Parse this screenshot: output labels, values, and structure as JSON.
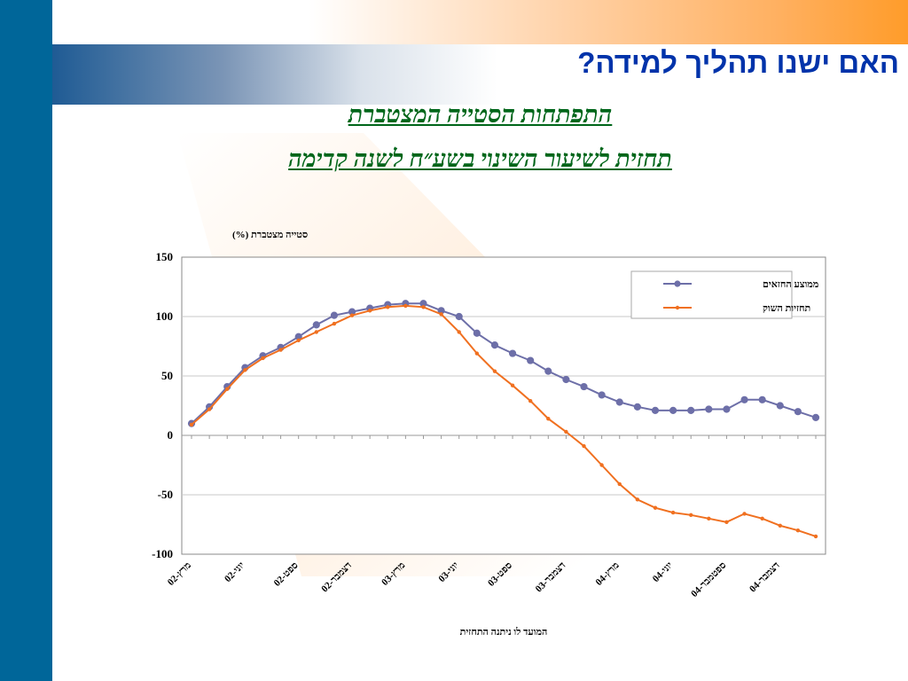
{
  "slide": {
    "title": "האם ישנו תהליך למידה?",
    "subtitle1": "התפתחות הסטייה המצטברת",
    "subtitle2": "תחזית לשיעור השינוי בשע״ח לשנה קדימה",
    "colors": {
      "sidebar": "#006699",
      "title": "#0033aa",
      "subtitle": "#00661a"
    }
  },
  "chart_data": {
    "type": "line",
    "ylabel": "סטייה מצטברת (%)",
    "xlabel": "המועד לו ניתנה התחזית",
    "ylim": [
      -100,
      150
    ],
    "yticks": [
      150,
      100,
      50,
      0,
      -50,
      -100
    ],
    "grid": true,
    "legend_position": "top-right",
    "x_tick_labels": [
      "מרץ-02",
      "יוני-02",
      "ספט-02",
      "דצמבר-02",
      "מרץ-03",
      "יוני-03",
      "ספט-03",
      "דצמבר-03",
      "מרץ-04",
      "יוני-04",
      "ספטמבר-04",
      "דצמבר-04"
    ],
    "x_tick_index": [
      0,
      3,
      6,
      9,
      12,
      15,
      18,
      21,
      24,
      27,
      30,
      33
    ],
    "series": [
      {
        "name": "ממוצע החזאים",
        "color": "#6d6fa8",
        "marker": "circle",
        "values": [
          10,
          24,
          41,
          57,
          67,
          74,
          83,
          93,
          101,
          104,
          107,
          110,
          111,
          111,
          105,
          100,
          86,
          76,
          69,
          63,
          54,
          47,
          41,
          34,
          28,
          24,
          21,
          21,
          21,
          22,
          22,
          30,
          30,
          25,
          20,
          15
        ]
      },
      {
        "name": "תחזיות השוק",
        "color": "#f07020",
        "marker": "dot",
        "values": [
          9,
          22,
          39,
          55,
          65,
          72,
          80,
          87,
          94,
          101,
          105,
          108,
          109,
          108,
          102,
          87,
          69,
          54,
          42,
          29,
          14,
          3,
          -9,
          -25,
          -41,
          -54,
          -61,
          -65,
          -67,
          -70,
          -73,
          -66,
          -70,
          -76,
          -80,
          -85
        ]
      }
    ]
  }
}
